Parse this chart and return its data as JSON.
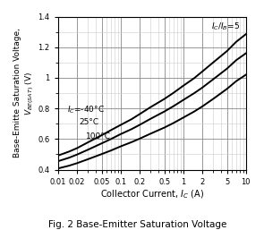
{
  "title": "Fig. 2 Base-Emitter Saturation Voltage",
  "xlabel": "Collector Current, I_C (A)",
  "ylabel_line1": "Base-Emitte Saturation Voltage,",
  "ylabel_line2": "V_BE(SAT) (V)",
  "xlim": [
    0.01,
    10
  ],
  "ylim": [
    0.4,
    1.4
  ],
  "ic_ib_label": "I_C/I_B=5",
  "curves": {
    "-40C": {
      "label": "I_C=-40°C",
      "x": [
        0.01,
        0.015,
        0.02,
        0.03,
        0.05,
        0.07,
        0.1,
        0.15,
        0.2,
        0.3,
        0.5,
        0.7,
        1.0,
        1.5,
        2.0,
        3.0,
        5.0,
        7.0,
        10.0
      ],
      "y": [
        0.492,
        0.518,
        0.54,
        0.578,
        0.625,
        0.658,
        0.692,
        0.73,
        0.762,
        0.808,
        0.862,
        0.902,
        0.948,
        0.998,
        1.04,
        1.1,
        1.175,
        1.235,
        1.285
      ]
    },
    "25C": {
      "label": "25°C",
      "x": [
        0.01,
        0.015,
        0.02,
        0.03,
        0.05,
        0.07,
        0.1,
        0.15,
        0.2,
        0.3,
        0.5,
        0.7,
        1.0,
        1.5,
        2.0,
        3.0,
        5.0,
        7.0,
        10.0
      ],
      "y": [
        0.455,
        0.478,
        0.498,
        0.53,
        0.572,
        0.6,
        0.632,
        0.665,
        0.692,
        0.732,
        0.78,
        0.815,
        0.855,
        0.9,
        0.935,
        0.99,
        1.06,
        1.115,
        1.16
      ]
    },
    "100C": {
      "label": "100°C",
      "x": [
        0.01,
        0.015,
        0.02,
        0.03,
        0.05,
        0.07,
        0.1,
        0.15,
        0.2,
        0.3,
        0.5,
        0.7,
        1.0,
        1.5,
        2.0,
        3.0,
        5.0,
        7.0,
        10.0
      ],
      "y": [
        0.408,
        0.426,
        0.442,
        0.468,
        0.502,
        0.525,
        0.552,
        0.58,
        0.602,
        0.635,
        0.675,
        0.705,
        0.74,
        0.78,
        0.812,
        0.862,
        0.928,
        0.978,
        1.02
      ]
    }
  },
  "background_color": "#ffffff",
  "grid_major_color": "#888888",
  "grid_minor_color": "#cccccc",
  "line_width": 1.4,
  "yticks": [
    0.4,
    0.6,
    0.8,
    1.0,
    1.2,
    1.4
  ],
  "xtick_labels": [
    "0.01",
    "0.02",
    "0.05",
    "0.1",
    "0.2",
    "0.5",
    "1",
    "2",
    "5",
    "10"
  ],
  "xtick_values": [
    0.01,
    0.02,
    0.05,
    0.1,
    0.2,
    0.5,
    1,
    2,
    5,
    10
  ]
}
